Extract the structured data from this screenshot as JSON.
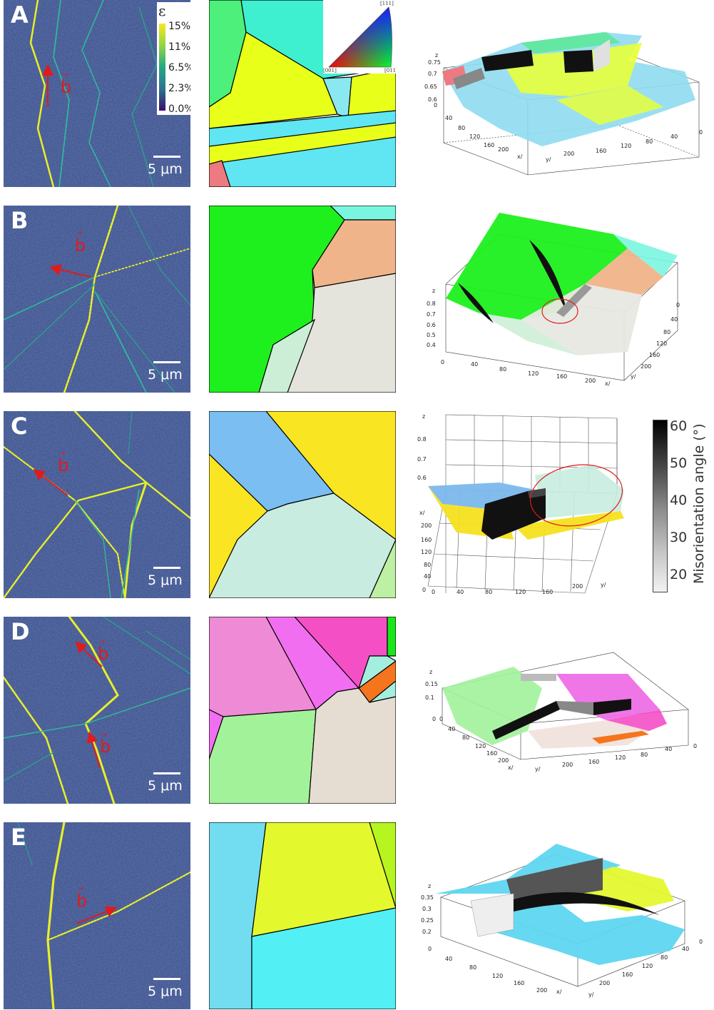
{
  "strain_colorbar": {
    "symbol": "ε",
    "ticks": [
      "15%",
      "11%",
      "6.5%",
      "2.3%",
      "0.0%"
    ],
    "colors": [
      "#f7e81f",
      "#8fd745",
      "#24a884",
      "#2b748e",
      "#3b0f70"
    ]
  },
  "ipf_legend": {
    "top": "[111]",
    "left": "[001]",
    "right": "[011]"
  },
  "misorientation_colorbar": {
    "title": "Misorientation angle (°)",
    "ticks": [
      "60",
      "50",
      "40",
      "30",
      "20"
    ]
  },
  "common": {
    "scale_bar": "5 μm",
    "burgers_vector": "b"
  },
  "axes_labels": {
    "x": "x/",
    "y": "y/",
    "z": "z"
  },
  "panels": [
    {
      "label": "A",
      "z_ticks": [
        "0.75",
        "0.7",
        "0.65",
        "0.6"
      ],
      "x_ticks": [
        "0",
        "40",
        "80",
        "120",
        "160",
        "200"
      ],
      "y_ticks": [
        "200",
        "160",
        "120",
        "80",
        "40",
        "0"
      ],
      "grain_colors": [
        "#4cf07a",
        "#3ff0d0",
        "#e8ff1a",
        "#5fe6f2",
        "#e8ff1a",
        "#5fe6f2",
        "#ec7a80"
      ]
    },
    {
      "label": "B",
      "z_ticks": [
        "0.8",
        "0.7",
        "0.6",
        "0.5",
        "0.4"
      ],
      "x_ticks": [
        "0",
        "40",
        "80",
        "120",
        "160",
        "200"
      ],
      "y_ticks": [
        "0",
        "40",
        "80",
        "120",
        "160",
        "200"
      ],
      "grain_colors": [
        "#1ef01e",
        "#7af6e0",
        "#f0b48a",
        "#e4e4dc",
        "#cdeed6"
      ]
    },
    {
      "label": "C",
      "z_ticks": [
        "0.8",
        "0.7",
        "0.6"
      ],
      "x_ticks": [
        "0",
        "40",
        "80",
        "120",
        "160",
        "200"
      ],
      "y_ticks": [
        "200",
        "160",
        "120",
        "80",
        "40",
        "0"
      ],
      "grain_colors": [
        "#7abef2",
        "#fae522",
        "#fae522",
        "#c8ece0",
        "#bdf0a2"
      ]
    },
    {
      "label": "D",
      "z_ticks": [
        "0.15",
        "0.1",
        "0"
      ],
      "x_ticks": [
        "0",
        "40",
        "80",
        "120",
        "160",
        "200"
      ],
      "y_ticks": [
        "200",
        "160",
        "120",
        "80",
        "40",
        "0"
      ],
      "grain_colors": [
        "#ee8ad6",
        "#f26ef0",
        "#f54fc6",
        "#a2f29a",
        "#e6ddd2",
        "#f5751e",
        "#a4eee0",
        "#18e818"
      ]
    },
    {
      "label": "E",
      "z_ticks": [
        "0.35",
        "0.3",
        "0.25",
        "0.2"
      ],
      "x_ticks": [
        "0",
        "40",
        "80",
        "120",
        "160",
        "200"
      ],
      "y_ticks": [
        "200",
        "160",
        "120",
        "80",
        "40",
        "0"
      ],
      "grain_colors": [
        "#72ddf0",
        "#e4f82e",
        "#52f0f5",
        "#b6f520"
      ]
    }
  ]
}
